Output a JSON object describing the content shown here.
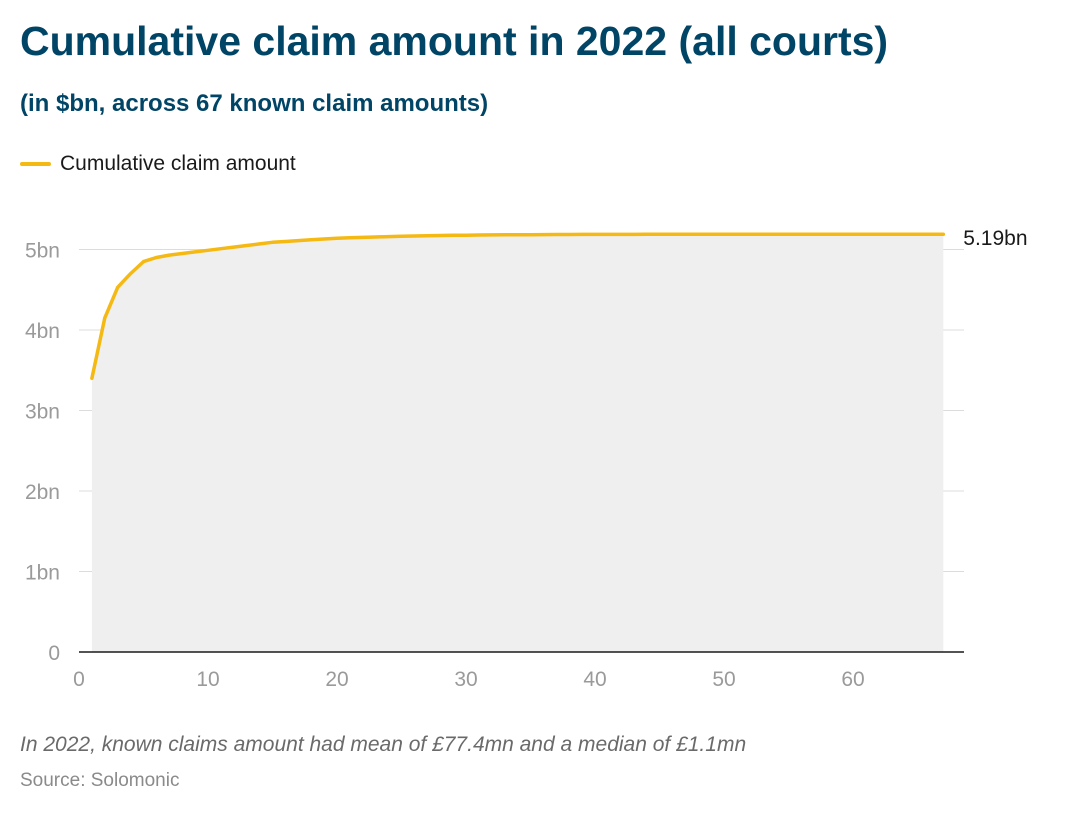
{
  "title": "Cumulative claim amount in 2022 (all courts)",
  "subtitle": "(in $bn, across 67 known claim amounts)",
  "legend": {
    "label": "Cumulative claim amount"
  },
  "note": "In 2022, known claims amount had mean of £77.4mn and a median of £1.1mn",
  "source": "Source: Solomonic",
  "colors": {
    "title": "#004466",
    "line": "#F5B914",
    "area": "#EFEFEF",
    "grid": "#DCDCDC",
    "axis": "#1A1A1A",
    "tick_text": "#9A9A9A"
  },
  "chart_data": {
    "type": "area",
    "title": "Cumulative claim amount in 2022 (all courts)",
    "subtitle": "(in $bn, across 67 known claim amounts)",
    "xlabel": "",
    "ylabel": "",
    "xlim": [
      0,
      68
    ],
    "ylim": [
      0,
      5.5
    ],
    "grid": true,
    "legend_position": "top-left",
    "x_ticks": [
      0,
      10,
      20,
      30,
      40,
      50,
      60
    ],
    "x_tick_labels": [
      "0",
      "10",
      "20",
      "30",
      "40",
      "50",
      "60"
    ],
    "y_ticks": [
      0,
      1,
      2,
      3,
      4,
      5
    ],
    "y_tick_labels": [
      "0",
      "1bn",
      "2bn",
      "3bn",
      "4bn",
      "5bn"
    ],
    "end_label": "5.19bn",
    "series": [
      {
        "name": "Cumulative claim amount",
        "x": [
          1,
          2,
          3,
          4,
          5,
          6,
          7,
          8,
          9,
          10,
          11,
          12,
          13,
          14,
          15,
          16,
          17,
          18,
          19,
          20,
          21,
          22,
          23,
          24,
          25,
          26,
          27,
          28,
          29,
          30,
          31,
          32,
          33,
          34,
          35,
          36,
          37,
          38,
          39,
          40,
          41,
          42,
          43,
          44,
          45,
          46,
          47,
          48,
          49,
          50,
          51,
          52,
          53,
          54,
          55,
          56,
          57,
          58,
          59,
          60,
          61,
          62,
          63,
          64,
          65,
          66,
          67
        ],
        "values": [
          3.4,
          4.15,
          4.53,
          4.7,
          4.85,
          4.9,
          4.93,
          4.95,
          4.97,
          4.99,
          5.01,
          5.03,
          5.05,
          5.07,
          5.09,
          5.1,
          5.11,
          5.12,
          5.13,
          5.14,
          5.145,
          5.15,
          5.155,
          5.16,
          5.165,
          5.168,
          5.171,
          5.174,
          5.176,
          5.178,
          5.18,
          5.181,
          5.182,
          5.183,
          5.184,
          5.185,
          5.186,
          5.186,
          5.187,
          5.187,
          5.188,
          5.188,
          5.188,
          5.189,
          5.189,
          5.189,
          5.189,
          5.19,
          5.19,
          5.19,
          5.19,
          5.19,
          5.19,
          5.19,
          5.19,
          5.19,
          5.19,
          5.19,
          5.19,
          5.19,
          5.19,
          5.19,
          5.19,
          5.19,
          5.19,
          5.19,
          5.19
        ]
      }
    ]
  }
}
